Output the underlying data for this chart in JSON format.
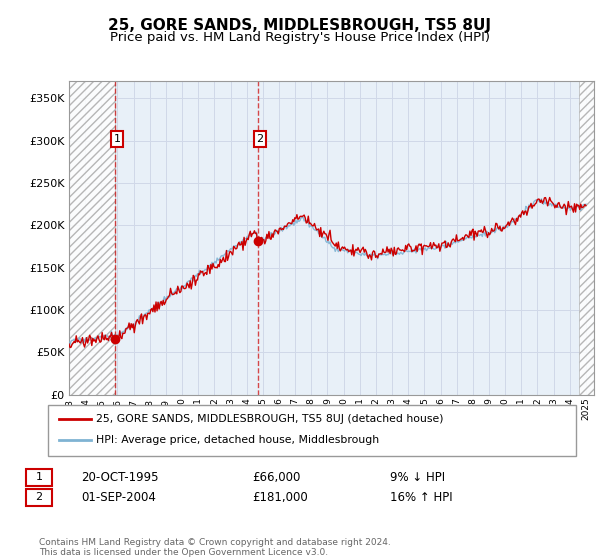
{
  "title": "25, GORE SANDS, MIDDLESBROUGH, TS5 8UJ",
  "subtitle": "Price paid vs. HM Land Registry's House Price Index (HPI)",
  "title_fontsize": 11,
  "subtitle_fontsize": 9.5,
  "ylabel_ticks": [
    0,
    50000,
    100000,
    150000,
    200000,
    250000,
    300000,
    350000
  ],
  "ylim": [
    0,
    370000
  ],
  "xlim_start": 1993.0,
  "xlim_end": 2025.5,
  "xticks": [
    1993,
    1994,
    1995,
    1996,
    1997,
    1998,
    1999,
    2000,
    2001,
    2002,
    2003,
    2004,
    2005,
    2006,
    2007,
    2008,
    2009,
    2010,
    2011,
    2012,
    2013,
    2014,
    2015,
    2016,
    2017,
    2018,
    2019,
    2020,
    2021,
    2022,
    2023,
    2024,
    2025
  ],
  "hatch_left_end": 1995.83,
  "hatch_right_start": 2024.58,
  "purchase1_x": 1995.83,
  "purchase1_y": 66000,
  "purchase1_label": "1",
  "purchase1_date": "20-OCT-1995",
  "purchase1_price": "£66,000",
  "purchase1_hpi": "9% ↓ HPI",
  "purchase2_x": 2004.67,
  "purchase2_y": 181000,
  "purchase2_label": "2",
  "purchase2_date": "01-SEP-2004",
  "purchase2_price": "£181,000",
  "purchase2_hpi": "16% ↑ HPI",
  "line1_color": "#cc0000",
  "line2_color": "#7fb3d3",
  "hatch_color": "#cccccc",
  "grid_color": "#d0d8e8",
  "background_color": "#ffffff",
  "plot_bg_color": "#e8f0f8",
  "legend1_label": "25, GORE SANDS, MIDDLESBROUGH, TS5 8UJ (detached house)",
  "legend2_label": "HPI: Average price, detached house, Middlesbrough",
  "footer": "Contains HM Land Registry data © Crown copyright and database right 2024.\nThis data is licensed under the Open Government Licence v3.0."
}
